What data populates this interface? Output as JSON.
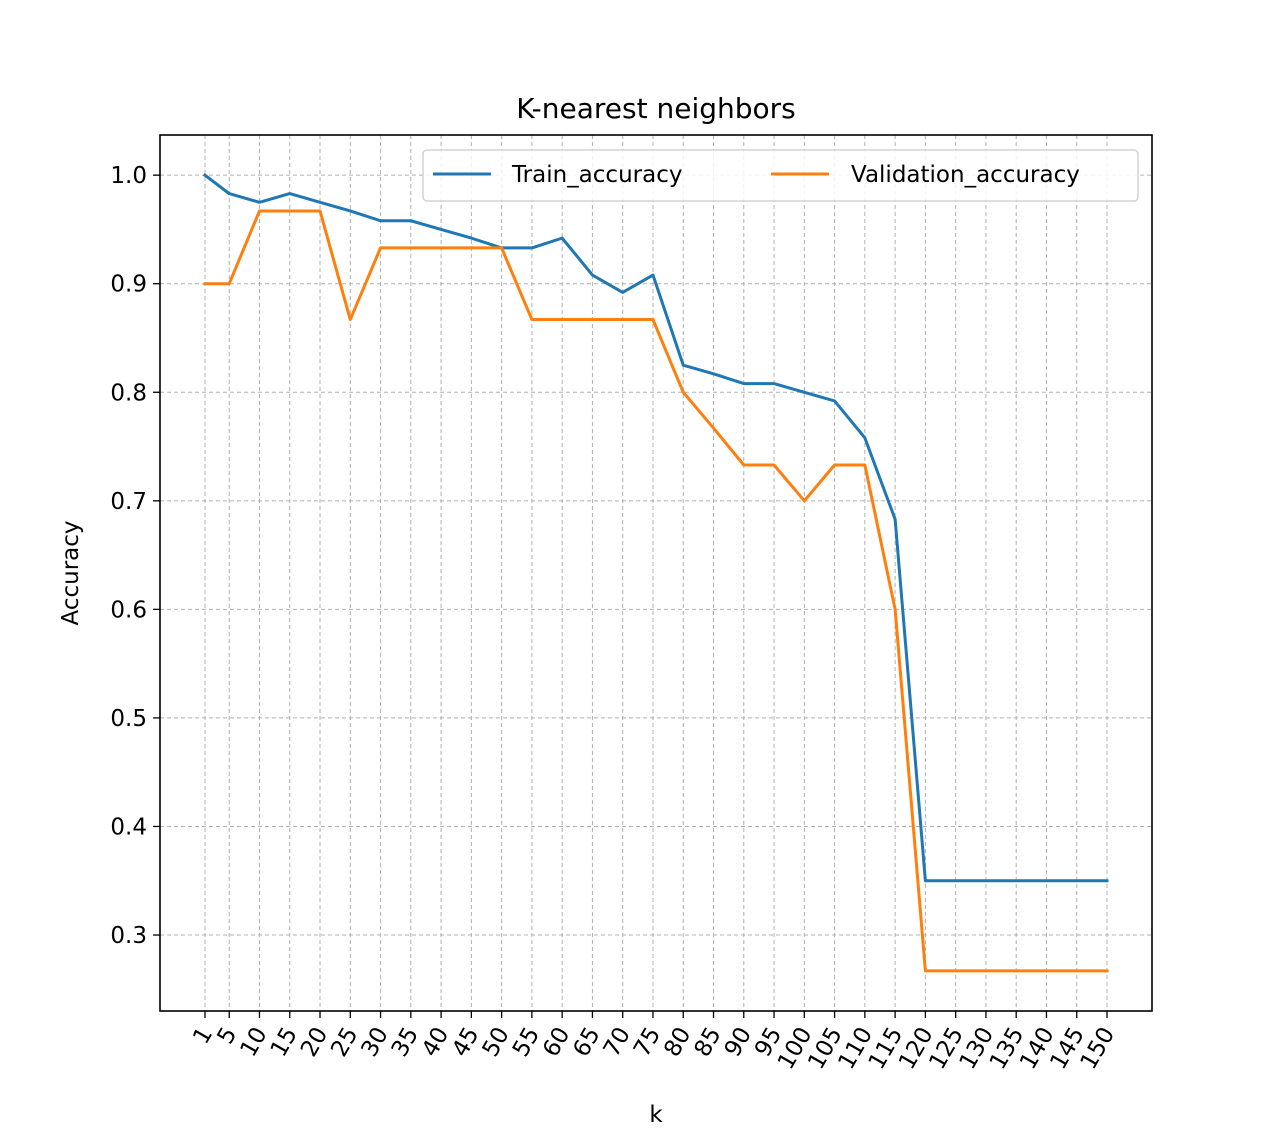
{
  "chart_data": {
    "type": "line",
    "title": "K-nearest neighbors",
    "xlabel": "k",
    "ylabel": "Accuracy",
    "x": [
      1,
      5,
      10,
      15,
      20,
      25,
      30,
      35,
      40,
      45,
      50,
      55,
      60,
      65,
      70,
      75,
      80,
      85,
      90,
      95,
      100,
      105,
      110,
      115,
      120,
      125,
      130,
      135,
      140,
      145,
      150
    ],
    "xticks": [
      "1",
      "5",
      "10",
      "15",
      "20",
      "25",
      "30",
      "35",
      "40",
      "45",
      "50",
      "55",
      "60",
      "65",
      "70",
      "75",
      "80",
      "85",
      "90",
      "95",
      "100",
      "105",
      "110",
      "115",
      "120",
      "125",
      "130",
      "135",
      "140",
      "145",
      "150"
    ],
    "yticks": [
      "0.3",
      "0.4",
      "0.5",
      "0.6",
      "0.7",
      "0.8",
      "0.9",
      "1.0"
    ],
    "ytick_values": [
      0.3,
      0.4,
      0.5,
      0.6,
      0.7,
      0.8,
      0.9,
      1.0
    ],
    "ylim": [
      0.23,
      1.037
    ],
    "grid": true,
    "legend": "top-right",
    "series": [
      {
        "name": "Train_accuracy",
        "color": "#1f77b4",
        "values": [
          1.0,
          0.983,
          0.975,
          0.983,
          0.975,
          0.967,
          0.958,
          0.958,
          0.95,
          0.942,
          0.933,
          0.933,
          0.942,
          0.908,
          0.892,
          0.908,
          0.825,
          0.817,
          0.808,
          0.808,
          0.8,
          0.792,
          0.758,
          0.683,
          0.35,
          0.35,
          0.35,
          0.35,
          0.35,
          0.35,
          0.35
        ]
      },
      {
        "name": "Validation_accuracy",
        "color": "#ff7f0e",
        "values": [
          0.9,
          0.9,
          0.967,
          0.967,
          0.967,
          0.867,
          0.933,
          0.933,
          0.933,
          0.933,
          0.933,
          0.867,
          0.867,
          0.867,
          0.867,
          0.867,
          0.8,
          0.767,
          0.733,
          0.733,
          0.7,
          0.733,
          0.733,
          0.6,
          0.267,
          0.267,
          0.267,
          0.267,
          0.267,
          0.267,
          0.267
        ]
      }
    ]
  }
}
